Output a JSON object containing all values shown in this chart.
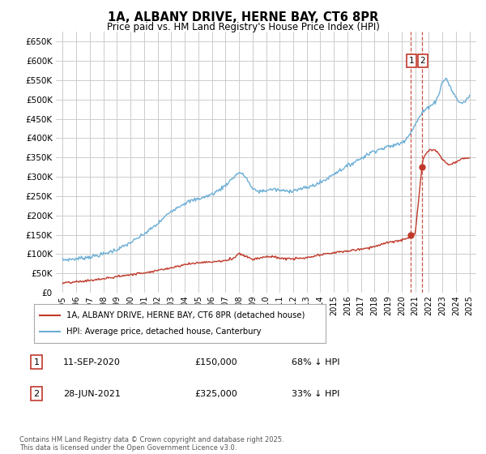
{
  "title": "1A, ALBANY DRIVE, HERNE BAY, CT6 8PR",
  "subtitle": "Price paid vs. HM Land Registry's House Price Index (HPI)",
  "legend_line1": "1A, ALBANY DRIVE, HERNE BAY, CT6 8PR (detached house)",
  "legend_line2": "HPI: Average price, detached house, Canterbury",
  "hpi_color": "#6baed6",
  "price_color": "#c0392b",
  "marker_color": "#c0392b",
  "dashed_line_color": "#c0392b",
  "background_color": "#ffffff",
  "grid_color": "#cccccc",
  "ylim": [
    0,
    675000
  ],
  "yticks": [
    0,
    50000,
    100000,
    150000,
    200000,
    250000,
    300000,
    350000,
    400000,
    450000,
    500000,
    550000,
    600000,
    650000
  ],
  "xlim_start": 1994.5,
  "xlim_end": 2025.5,
  "transaction1_x": 2020.69,
  "transaction1_y": 150000,
  "transaction1_label": "1",
  "transaction1_date": "11-SEP-2020",
  "transaction1_price": "£150,000",
  "transaction1_hpi": "68% ↓ HPI",
  "transaction2_x": 2021.49,
  "transaction2_y": 325000,
  "transaction2_label": "2",
  "transaction2_date": "28-JUN-2021",
  "transaction2_price": "£325,000",
  "transaction2_hpi": "33% ↓ HPI",
  "footnote": "Contains HM Land Registry data © Crown copyright and database right 2025.\nThis data is licensed under the Open Government Licence v3.0.",
  "xticks": [
    1995,
    1996,
    1997,
    1998,
    1999,
    2000,
    2001,
    2002,
    2003,
    2004,
    2005,
    2006,
    2007,
    2008,
    2009,
    2010,
    2011,
    2012,
    2013,
    2014,
    2015,
    2016,
    2017,
    2018,
    2019,
    2020,
    2021,
    2022,
    2023,
    2024,
    2025
  ],
  "hpi_waypoints_x": [
    1995.0,
    1996.0,
    1997.0,
    1997.5,
    1998.0,
    1998.5,
    1999.0,
    1999.5,
    2000.0,
    2000.5,
    2001.0,
    2001.5,
    2002.0,
    2002.5,
    2003.0,
    2003.5,
    2004.0,
    2004.5,
    2005.0,
    2005.5,
    2006.0,
    2006.5,
    2007.0,
    2007.5,
    2008.0,
    2008.5,
    2009.0,
    2009.5,
    2010.0,
    2010.5,
    2011.0,
    2011.5,
    2012.0,
    2012.5,
    2013.0,
    2013.5,
    2014.0,
    2014.5,
    2015.0,
    2015.5,
    2016.0,
    2016.5,
    2017.0,
    2017.5,
    2018.0,
    2018.5,
    2019.0,
    2019.5,
    2020.0,
    2020.3,
    2020.6,
    2020.9,
    2021.2,
    2021.5,
    2021.8,
    2022.1,
    2022.4,
    2022.7,
    2023.0,
    2023.3,
    2023.6,
    2023.9,
    2024.2,
    2024.5,
    2024.8,
    2025.0
  ],
  "hpi_waypoints_y": [
    85000,
    88000,
    93000,
    96000,
    100000,
    106000,
    112000,
    120000,
    130000,
    140000,
    152000,
    165000,
    178000,
    195000,
    212000,
    222000,
    232000,
    238000,
    243000,
    248000,
    255000,
    265000,
    278000,
    295000,
    312000,
    300000,
    268000,
    262000,
    265000,
    268000,
    265000,
    263000,
    265000,
    268000,
    272000,
    278000,
    285000,
    295000,
    308000,
    318000,
    328000,
    338000,
    348000,
    358000,
    368000,
    372000,
    378000,
    382000,
    388000,
    398000,
    412000,
    428000,
    448000,
    465000,
    475000,
    485000,
    490000,
    510000,
    545000,
    555000,
    530000,
    510000,
    495000,
    490000,
    500000,
    510000
  ],
  "price_waypoints_x": [
    1995.0,
    1996.0,
    1997.0,
    1998.0,
    1999.0,
    2000.0,
    2001.0,
    2002.0,
    2003.0,
    2004.0,
    2005.0,
    2006.0,
    2007.0,
    2007.5,
    2008.0,
    2008.5,
    2009.0,
    2009.5,
    2010.0,
    2010.5,
    2011.0,
    2011.5,
    2012.0,
    2013.0,
    2014.0,
    2015.0,
    2016.0,
    2017.0,
    2018.0,
    2019.0,
    2019.5,
    2020.0,
    2020.4,
    2020.69,
    2020.75,
    2021.0,
    2021.49,
    2021.6,
    2022.0,
    2022.5,
    2023.0,
    2023.5,
    2024.0,
    2024.5,
    2025.0
  ],
  "price_waypoints_y": [
    25000,
    28000,
    32000,
    36000,
    42000,
    47000,
    52000,
    58000,
    65000,
    73000,
    78000,
    80000,
    83000,
    88000,
    102000,
    95000,
    87000,
    90000,
    94000,
    93000,
    90000,
    88000,
    88000,
    90000,
    98000,
    104000,
    108000,
    113000,
    120000,
    130000,
    133000,
    136000,
    140000,
    150000,
    152000,
    155000,
    325000,
    350000,
    370000,
    370000,
    345000,
    330000,
    338000,
    348000,
    350000
  ]
}
